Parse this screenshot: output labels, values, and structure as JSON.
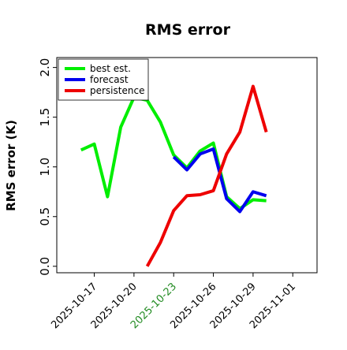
{
  "chart_data": {
    "type": "line",
    "title": "RMS error",
    "y_label": "RMS error (K)",
    "x": [
      "2025-10-16",
      "2025-10-17",
      "2025-10-18",
      "2025-10-19",
      "2025-10-20",
      "2025-10-21",
      "2025-10-22",
      "2025-10-23",
      "2025-10-24",
      "2025-10-25",
      "2025-10-26",
      "2025-10-27",
      "2025-10-28",
      "2025-10-29",
      "2025-10-30"
    ],
    "series": [
      {
        "name": "best est.",
        "color": "#00ee00",
        "values": [
          1.17,
          1.23,
          0.7,
          1.4,
          1.7,
          1.67,
          1.45,
          1.12,
          0.99,
          1.16,
          1.24,
          0.7,
          0.58,
          0.67,
          0.66
        ]
      },
      {
        "name": "forecast",
        "color": "#0000ee",
        "values": [
          null,
          null,
          null,
          null,
          null,
          null,
          null,
          1.1,
          0.97,
          1.13,
          1.18,
          0.68,
          0.55,
          0.75,
          0.71
        ]
      },
      {
        "name": "persistence",
        "color": "#ee0000",
        "values": [
          null,
          null,
          null,
          null,
          null,
          0.0,
          0.24,
          0.56,
          0.71,
          0.72,
          0.76,
          1.13,
          1.35,
          1.81,
          1.35
        ]
      }
    ],
    "xlim": [
      "2025-10-14T04:00",
      "2025-11-02T20:00"
    ],
    "xticks": [
      "2025-10-17",
      "2025-10-20",
      "2025-10-23",
      "2025-10-26",
      "2025-10-29",
      "2025-11-01"
    ],
    "xtick_colors": [
      "#000000",
      "#000000",
      "#228b22",
      "#000000",
      "#000000",
      "#000000"
    ],
    "ylim": [
      -0.065,
      2.1
    ],
    "yticks": [
      {
        "value": 0,
        "label": "0.0"
      },
      0.5,
      {
        "value": 1,
        "label": "1.0"
      },
      1.5,
      {
        "value": 2,
        "label": "2.0"
      }
    ],
    "legend": "upper left"
  }
}
